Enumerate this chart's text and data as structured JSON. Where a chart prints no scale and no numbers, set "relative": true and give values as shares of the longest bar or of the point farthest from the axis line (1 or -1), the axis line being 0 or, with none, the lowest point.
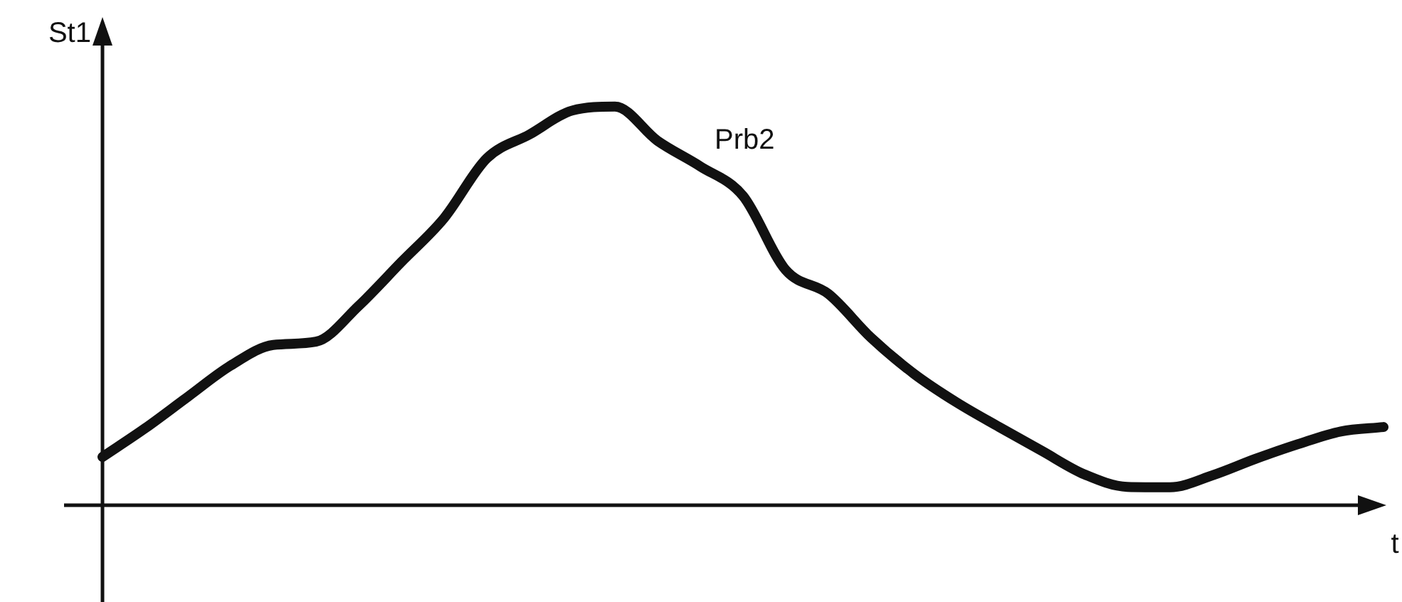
{
  "chart_data": {
    "type": "line",
    "relative": true,
    "xlabel": "t",
    "ylabel": "St1",
    "legend": false,
    "marker": "none",
    "line_style": "solid",
    "categories": [
      null,
      null,
      null,
      null,
      null,
      null,
      null,
      null,
      null,
      null,
      null,
      null,
      null,
      null,
      null,
      null,
      null,
      null,
      null,
      null,
      null,
      null,
      null,
      null,
      null,
      null,
      null,
      null,
      null,
      null,
      null
    ],
    "series": [
      {
        "name": "Prb2",
        "color": "#111111",
        "values": [
          0.121,
          0.193,
          0.272,
          0.35,
          0.402,
          0.41,
          0.5,
          0.61,
          0.72,
          0.87,
          0.93,
          0.99,
          1.0,
          0.914,
          0.85,
          0.776,
          0.59,
          0.53,
          0.42,
          0.33,
          0.258,
          0.196,
          0.136,
          0.077,
          0.046,
          0.045,
          0.075,
          0.116,
          0.153,
          0.185,
          0.196
        ]
      }
    ]
  }
}
